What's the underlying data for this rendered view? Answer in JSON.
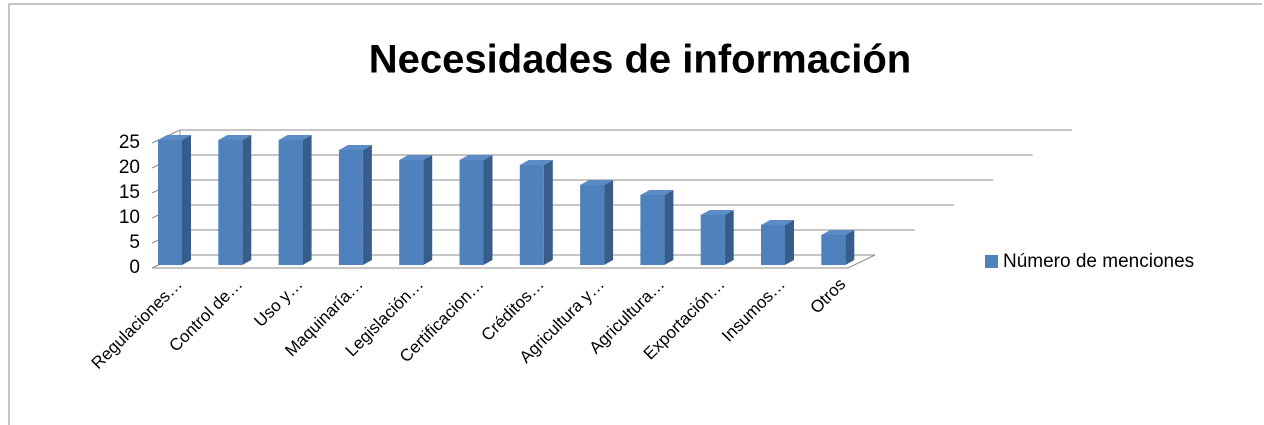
{
  "chart_data": {
    "type": "bar3d",
    "title": "Necesidades de información",
    "categories": [
      "Regulaciones…",
      "Control de…",
      "Uso y…",
      "Maquinaría…",
      "Legislación…",
      "Certificacion…",
      "Créditos…",
      "Agricultura y…",
      "Agricultura…",
      "Exportación…",
      "Insumos…",
      "Otros"
    ],
    "series": [
      {
        "name": "Número de menciones",
        "color": "#4f81bd",
        "values": [
          25,
          25,
          25,
          23,
          21,
          21,
          20,
          16,
          14,
          10,
          8,
          6
        ]
      }
    ],
    "ylim": [
      0,
      25
    ],
    "yticks": [
      0,
      5,
      10,
      15,
      20,
      25
    ],
    "grid": true,
    "legend": "right"
  }
}
